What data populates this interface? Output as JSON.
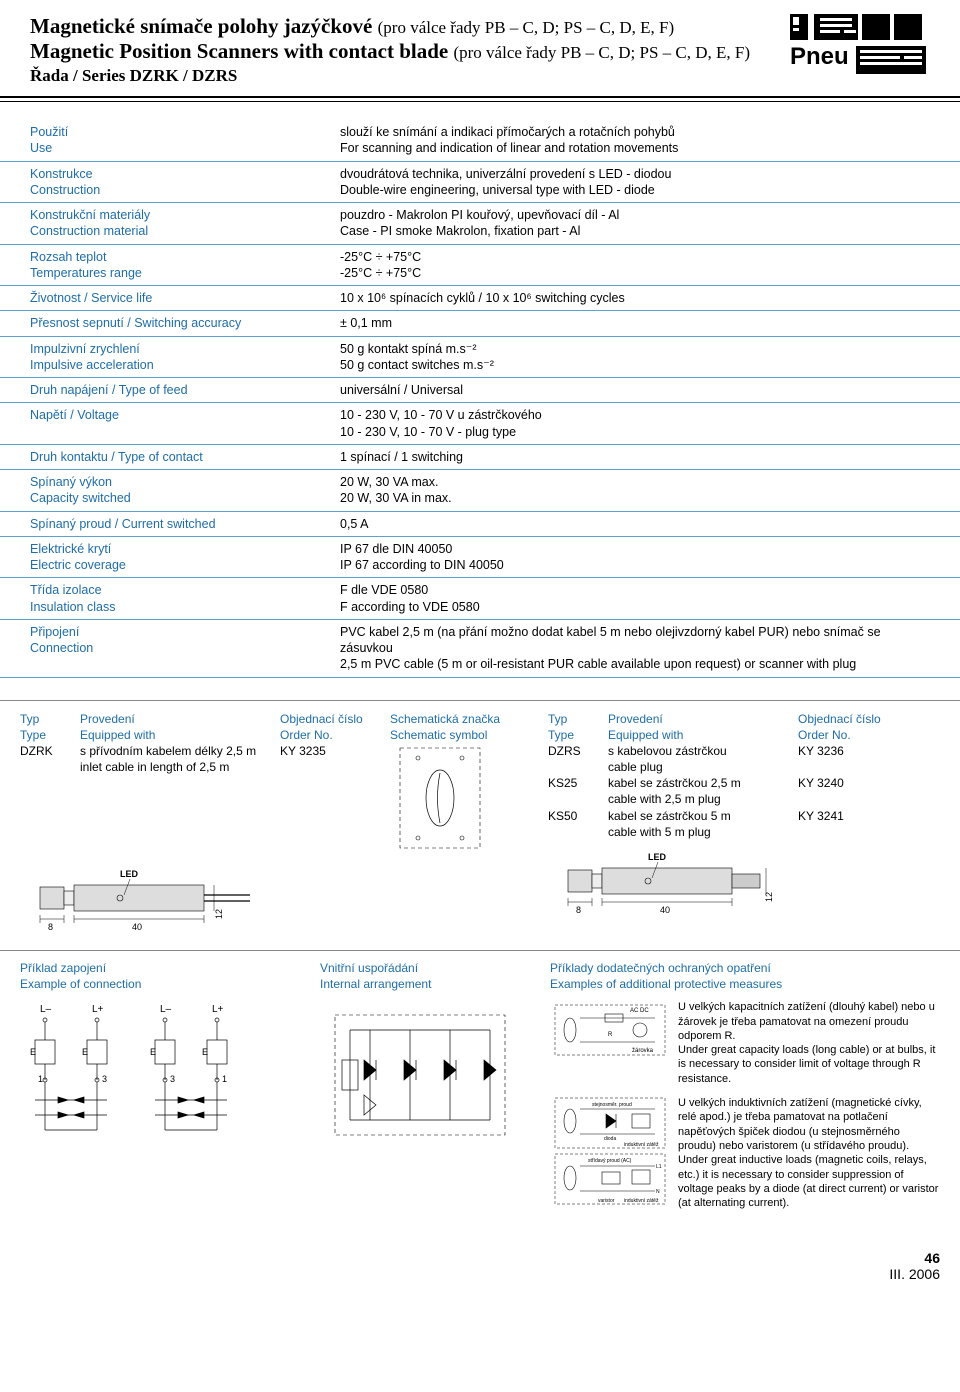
{
  "header": {
    "title1_main": "Magnetické snímače polohy jazýčkové",
    "title1_sub": "(pro válce řady PB – C, D; PS – C, D, E, F)",
    "title2_main": "Magnetic Position Scanners with contact blade",
    "title2_sub": "(pro válce řady PB – C, D; PS – C, D, E, F)",
    "series": "Řada / Series  DZRK / DZRS",
    "logo_text": "Pneu"
  },
  "specs": [
    {
      "label_cz": "Použití",
      "label_en": "Use",
      "val_cz": "slouží ke snímání a indikaci přímočarých a rotačních pohybů",
      "val_en": "For scanning and indication of linear and rotation movements"
    },
    {
      "label_cz": "Konstrukce",
      "label_en": "Construction",
      "val_cz": "dvoudrátová technika, univerzální provedení s LED - diodou",
      "val_en": "Double-wire engineering, universal type with LED - diode"
    },
    {
      "label_cz": "Konstrukční materiály",
      "label_en": "Construction material",
      "val_cz": "pouzdro - Makrolon PI kouřový, upevňovací díl - Al",
      "val_en": "Case - PI smoke Makrolon, fixation part - Al"
    },
    {
      "label_cz": "Rozsah teplot",
      "label_en": "Temperatures range",
      "val_cz": "-25°C ÷ +75°C",
      "val_en": "-25°C ÷ +75°C"
    },
    {
      "label_cz": "Životnost / Service life",
      "label_en": "",
      "val_cz": "10 x 10⁶ spínacích cyklů / 10 x 10⁶ switching cycles",
      "val_en": ""
    },
    {
      "label_cz": "Přesnost sepnutí / Switching accuracy",
      "label_en": "",
      "val_cz": "± 0,1 mm",
      "val_en": ""
    },
    {
      "label_cz": "Impulzivní zrychlení",
      "label_en": "Impulsive acceleration",
      "val_cz": "50 g kontakt spíná m.s⁻²",
      "val_en": "50 g contact switches m.s⁻²"
    },
    {
      "label_cz": "Druh napájení / Type of feed",
      "label_en": "",
      "val_cz": "universální / Universal",
      "val_en": ""
    },
    {
      "label_cz": "Napětí / Voltage",
      "label_en": "",
      "val_cz": "10 - 230 V,   10 - 70 V u zástrčkového",
      "val_en": "10 - 230 V,   10 - 70 V - plug type"
    },
    {
      "label_cz": "Druh kontaktu / Type of contact",
      "label_en": "",
      "val_cz": "1 spínací / 1 switching",
      "val_en": ""
    },
    {
      "label_cz": "Spínaný výkon",
      "label_en": "Capacity switched",
      "val_cz": "20 W, 30 VA max.",
      "val_en": "20 W, 30 VA in max."
    },
    {
      "label_cz": "Spínaný proud / Current switched",
      "label_en": "",
      "val_cz": "0,5 A",
      "val_en": ""
    },
    {
      "label_cz": "Elektrické krytí",
      "label_en": "Electric coverage",
      "val_cz": "IP 67  dle DIN 40050",
      "val_en": "IP 67 according to DIN 40050"
    },
    {
      "label_cz": "Třída izolace",
      "label_en": "Insulation class",
      "val_cz": "F dle VDE 0580",
      "val_en": "F according to VDE 0580"
    },
    {
      "label_cz": "Připojení",
      "label_en": "Connection",
      "val_cz": "PVC kabel 2,5 m (na přání možno dodat kabel 5 m nebo olejivzdorný kabel PUR) nebo snímač se zásuvkou",
      "val_en": "2,5 m PVC cable (5 m or oil-resistant PUR cable available upon request) or scanner with plug"
    }
  ],
  "order_left": {
    "h_type_cz": "Typ",
    "h_type_en": "Type",
    "h_equip_cz": "Provedení",
    "h_equip_en": "Equipped with",
    "h_ord_cz": "Objednací číslo",
    "h_ord_en": "Order No.",
    "h_sym_cz": "Schematická značka",
    "h_sym_en": "Schematic symbol",
    "rows": [
      {
        "type": "DZRK",
        "equip_cz": "s přívodním kabelem délky 2,5 m",
        "equip_en": "inlet cable in length of 2,5 m",
        "order": "KY 3235"
      }
    ]
  },
  "order_right": {
    "h_type_cz": "Typ",
    "h_type_en": "Type",
    "h_equip_cz": "Provedení",
    "h_equip_en": "Equipped with",
    "h_ord_cz": "Objednací číslo",
    "h_ord_en": "Order No.",
    "rows": [
      {
        "type": "DZRS",
        "equip_cz": "s kabelovou zástrčkou",
        "equip_en": "cable plug",
        "order": "KY 3236"
      },
      {
        "type": "KS25",
        "equip_cz": "kabel se zástrčkou 2,5 m",
        "equip_en": "cable with 2,5 m plug",
        "order": "KY 3240"
      },
      {
        "type": "KS50",
        "equip_cz": "kabel se zástrčkou 5 m",
        "equip_en": "cable with 5 m plug",
        "order": "KY 3241"
      }
    ]
  },
  "dims": {
    "led": "LED",
    "d8": "8",
    "d40": "40",
    "d12": "12"
  },
  "bottom": {
    "col1_cz": "Příklad zapojení",
    "col1_en": "Example of connection",
    "col2_cz": "Vnitřní uspořádání",
    "col2_en": "Internal arrangement",
    "col3_cz": "Příklady dodatečných ochraných opatření",
    "col3_en": "Examples of additional protective measures",
    "conn_labels": {
      "Lm": "L–",
      "Lp": "L+",
      "E": "E",
      "n1": "1",
      "n3": "3"
    },
    "sch_labels": {
      "acdc": "AC DC",
      "R": "R",
      "zarovka": "žárovka",
      "stejp": "stejnosměr. proud",
      "dioda": "dioda",
      "indz": "induktivní zátěž",
      "stridp": "střídavý proud (AC)",
      "varistor": "varistor",
      "L1": "L1",
      "N": "N"
    },
    "prot1_cz": "U velkých kapacitních zatížení (dlouhý kabel) nebo u žárovek je třeba pamatovat na omezení proudu odporem R.",
    "prot1_en": "Under great capacity loads (long cable) or at bulbs, it is necessary to consider limit of voltage through R resistance.",
    "prot2_cz": "U velkých induktivních zatížení (magnetické cívky, relé apod.) je třeba pamatovat na potlačení napěťových špiček diodou (u stejnosměrného proudu) nebo varistorem (u střídavého proudu).",
    "prot2_en": "Under great inductive loads (magnetic coils, relays, etc.) it is necessary to consider suppression of voltage peaks by a diode (at direct current) or varistor (at alternating current)."
  },
  "footer": {
    "page": "46",
    "date": "III. 2006"
  },
  "colors": {
    "accent": "#1e6da8",
    "row_border": "#5aa3d0"
  }
}
